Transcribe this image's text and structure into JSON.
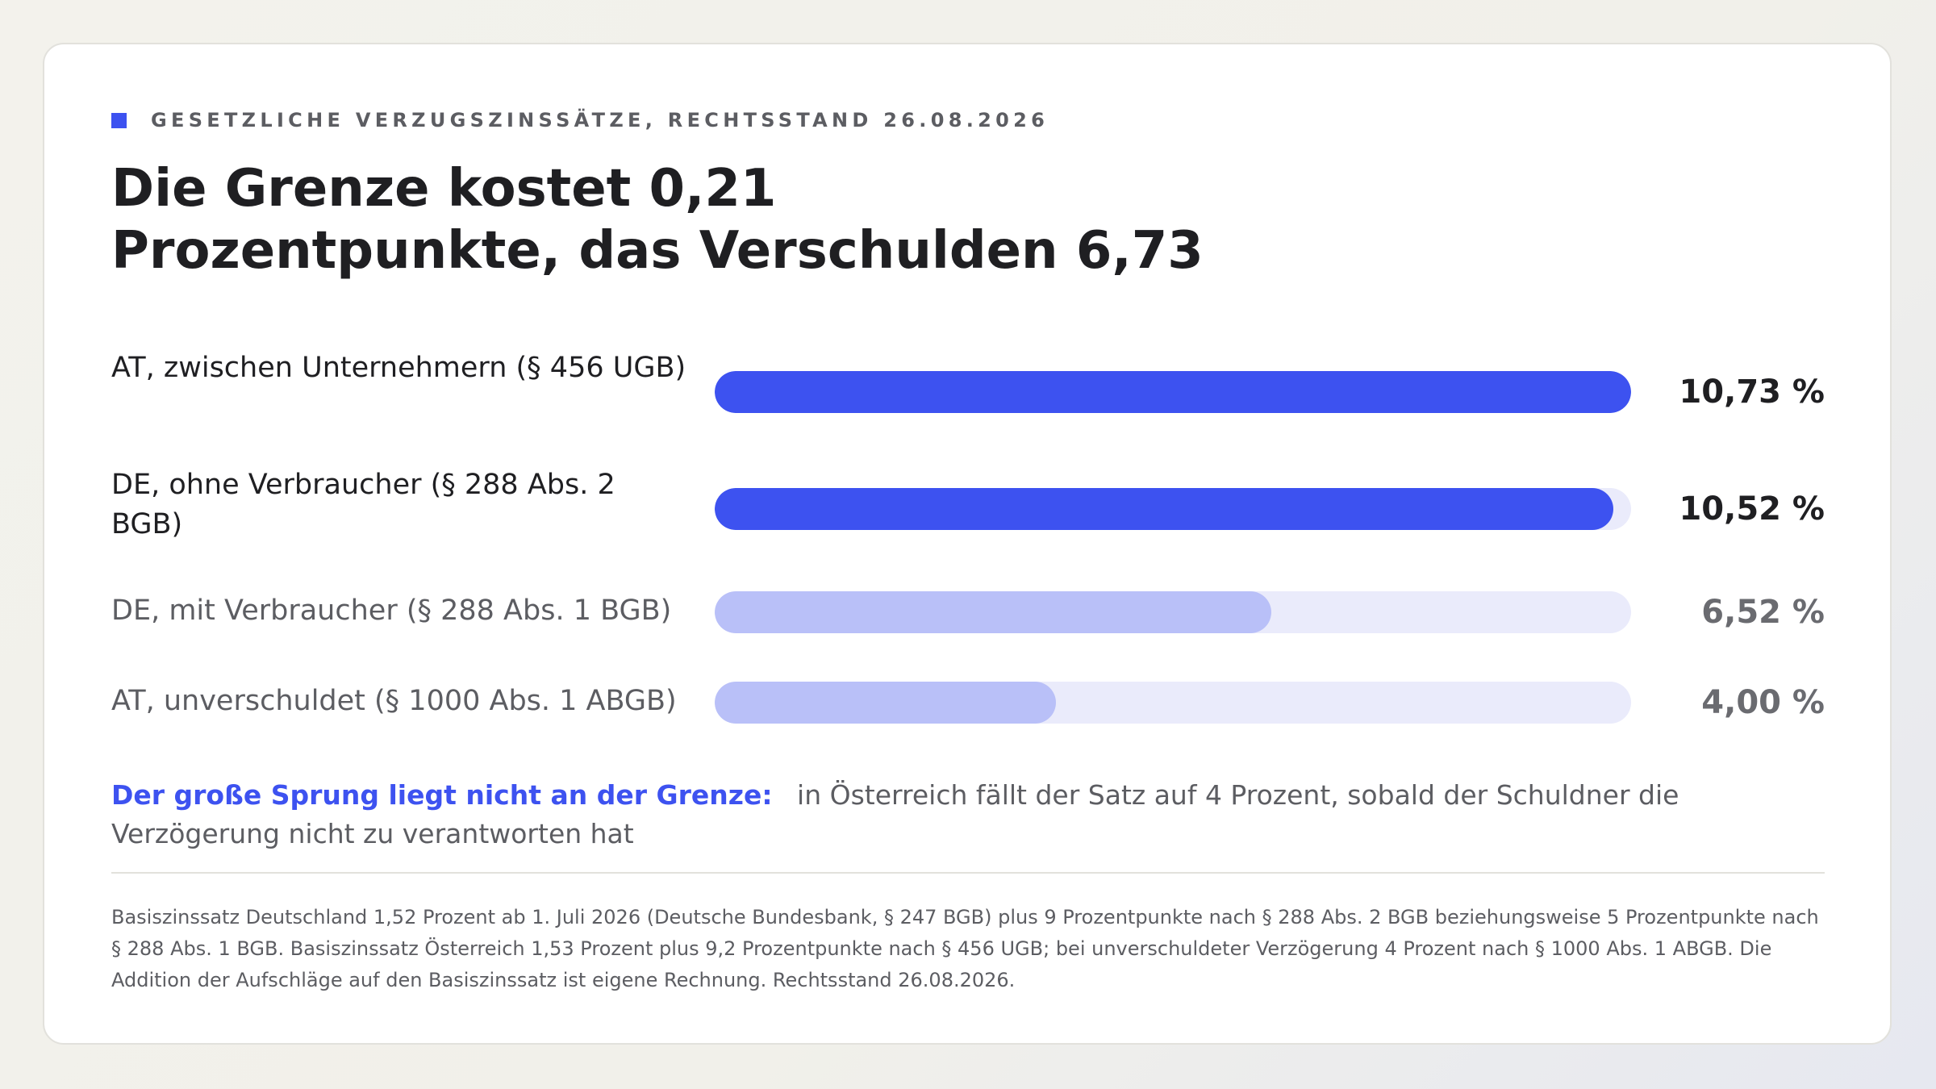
{
  "eyebrow": "GESETZLICHE VERZUGSZINSSÄTZE, RECHTSSTAND 26.08.2026",
  "colors": {
    "accent": "#3d52f0",
    "accent_light": "#b9c0f8",
    "track": "#eaebfb"
  },
  "chart_data": {
    "type": "bar",
    "orientation": "horizontal",
    "title_lines": [
      "Die Grenze kostet 0,21",
      "Prozentpunkte, das Verschulden 6,73"
    ],
    "unit": "%",
    "xlim": [
      0,
      10.73
    ],
    "categories": [
      "AT, zwischen Unternehmern (§ 456 UGB)",
      "DE, ohne Verbraucher (§ 288 Abs. 2 BGB)",
      "DE, mit Verbraucher (§ 288 Abs. 1 BGB)",
      "AT, unverschuldet (§ 1000 Abs. 1 ABGB)"
    ],
    "values": [
      10.73,
      10.52,
      6.52,
      4.0
    ],
    "value_labels": [
      "10,73 %",
      "10,52 %",
      "6,52 %",
      "4,00 %"
    ],
    "emphasis": [
      "strong",
      "strong",
      "muted",
      "muted"
    ]
  },
  "callout": {
    "lead": "Der große Sprung liegt nicht an der Grenze:",
    "text": "in Österreich fällt der Satz auf 4 Prozent, sobald der Schuldner die Verzögerung nicht zu verantworten hat"
  },
  "footnote": "Basiszinssatz Deutschland 1,52 Prozent ab 1. Juli 2026 (Deutsche Bundesbank, § 247 BGB) plus 9 Prozentpunkte nach § 288 Abs. 2 BGB beziehungsweise 5 Prozentpunkte nach § 288 Abs. 1 BGB. Basiszinssatz Österreich 1,53 Prozent plus 9,2 Prozentpunkte nach § 456 UGB; bei unverschuldeter Verzögerung 4 Prozent nach § 1000 Abs. 1 ABGB. Die Addition der Aufschläge auf den Basiszinssatz ist eigene Rechnung. Rechtsstand 26.08.2026."
}
